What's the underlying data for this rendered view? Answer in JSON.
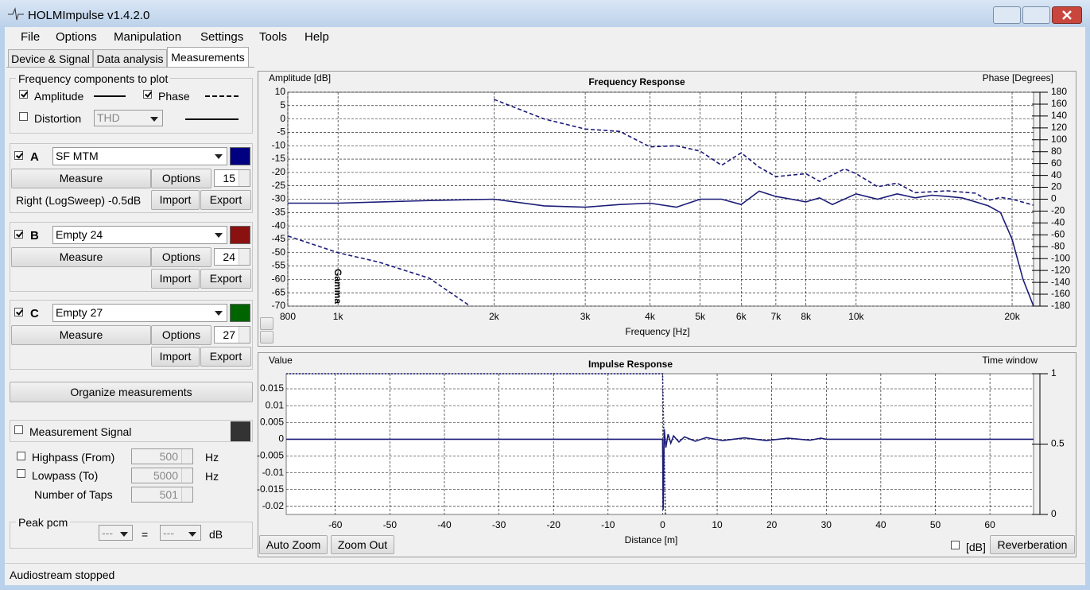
{
  "window": {
    "title": "HOLMImpulse  v1.4.2.0"
  },
  "menu": [
    "File",
    "Options",
    "Manipulation",
    "Settings",
    "Tools",
    "Help"
  ],
  "tabs": [
    "Device & Signal",
    "Data analysis",
    "Measurements"
  ],
  "components": {
    "title": "Frequency components to plot",
    "amplitude": "Amplitude",
    "phase": "Phase",
    "distortion": "Distortion",
    "distortion_type": "THD"
  },
  "measurements": [
    {
      "letter": "A",
      "name": "SF MTM",
      "color": "#000080",
      "measure": "Measure",
      "options": "Options",
      "count": 15,
      "info": "Right (LogSweep) -0.5dB",
      "import": "Import",
      "export": "Export"
    },
    {
      "letter": "B",
      "name": "Empty 24",
      "color": "#8b1010",
      "measure": "Measure",
      "options": "Options",
      "count": 24,
      "import": "Import",
      "export": "Export"
    },
    {
      "letter": "C",
      "name": "Empty 27",
      "color": "#006400",
      "measure": "Measure",
      "options": "Options",
      "count": 27,
      "import": "Import",
      "export": "Export"
    }
  ],
  "organize": "Organize measurements",
  "signal": {
    "title": "Measurement Signal",
    "highpass": "Highpass (From)",
    "highpass_value": 500,
    "lowpass": "Lowpass (To)",
    "lowpass_value": 5000,
    "taps": "Number of Taps",
    "taps_value": 501,
    "unit": "Hz"
  },
  "peak": {
    "title": "Peak pcm",
    "left": "---",
    "equals": "=",
    "right": "---",
    "unit": "dB"
  },
  "buttons": {
    "auto_zoom": "Auto Zoom",
    "zoom_out": "Zoom Out",
    "db": "[dB]",
    "reverberation": "Reverberation"
  },
  "status": "Audiostream stopped",
  "chart_data": [
    {
      "type": "line",
      "title": "Frequency Response",
      "xlabel": "Frequency [Hz]",
      "ylabel": "Amplitude [dB]",
      "y2label": "Phase [Degrees]",
      "annotation": "Gamma",
      "xscale": "log",
      "grid": true,
      "xlim": [
        800,
        22000
      ],
      "xticks": [
        800,
        {
          "value": 1000,
          "label": "1k"
        },
        {
          "value": 2000,
          "label": "2k"
        },
        {
          "value": 3000,
          "label": "3k"
        },
        {
          "value": 4000,
          "label": "4k"
        },
        {
          "value": 5000,
          "label": "5k"
        },
        {
          "value": 6000,
          "label": "6k"
        },
        {
          "value": 7000,
          "label": "7k"
        },
        {
          "value": 8000,
          "label": "8k"
        },
        {
          "value": 10000,
          "label": "10k"
        },
        {
          "value": 20000,
          "label": "20k"
        }
      ],
      "ylim": [
        -70,
        10
      ],
      "yticks": [
        10,
        5,
        0,
        -5,
        -10,
        -15,
        -20,
        -25,
        -30,
        -35,
        -40,
        -45,
        -50,
        -55,
        -60,
        -65,
        -70
      ],
      "y2lim": [
        -180,
        180
      ],
      "y2ticks": [
        180,
        160,
        140,
        120,
        100,
        80,
        60,
        40,
        20,
        0,
        -20,
        -40,
        -60,
        -80,
        -100,
        -120,
        -140,
        -160,
        -180
      ],
      "series": [
        {
          "name": "Amplitude",
          "color": "#1c1c78",
          "line_style": "solid",
          "x": [
            800,
            1000,
            1500,
            2000,
            2500,
            3000,
            3500,
            4000,
            4500,
            5000,
            5500,
            6000,
            6500,
            7000,
            7500,
            8000,
            8500,
            9000,
            10000,
            11000,
            12000,
            13000,
            14000,
            15000,
            16000,
            17000,
            18000,
            19000,
            20000,
            21000,
            22000
          ],
          "values": [
            -31.5,
            -31.5,
            -30.5,
            -30,
            -32.5,
            -33,
            -32,
            -31.5,
            -33,
            -30,
            -30,
            -32,
            -27,
            -29,
            -30,
            -31,
            -29.5,
            -32,
            -28,
            -30,
            -28,
            -29.5,
            -28.5,
            -29,
            -29.5,
            -31,
            -32.5,
            -35,
            -45,
            -60,
            -70
          ]
        },
        {
          "name": "Phase",
          "color": "#1c1c78",
          "line_style": "dashed",
          "axis": "y2",
          "x": [
            800,
            1000,
            1200,
            1500,
            1800,
            1850,
            2000,
            2500,
            3000,
            3500,
            4000,
            4500,
            5000,
            5500,
            6000,
            6500,
            7000,
            8000,
            8500,
            9500,
            10000,
            11000,
            12000,
            13000,
            15000,
            17000,
            18000,
            19000,
            20000,
            22000
          ],
          "values": [
            -62,
            -90,
            -106,
            -133,
            -180,
            null,
            168,
            135,
            118,
            114,
            88,
            90,
            81,
            57,
            78,
            54,
            38,
            43,
            30,
            51,
            43,
            21,
            27,
            11,
            14,
            10,
            -2,
            3,
            0,
            -10
          ]
        }
      ]
    },
    {
      "type": "line",
      "title": "Impulse Response",
      "xlabel": "Distance [m]",
      "ylabel": "Value",
      "y2label": "Time window",
      "grid": true,
      "xlim": [
        -69,
        68
      ],
      "xticks": [
        -60,
        -50,
        -40,
        -30,
        -20,
        -10,
        0,
        10,
        20,
        30,
        40,
        50,
        60
      ],
      "ylim": [
        -0.0224,
        0.0195
      ],
      "yticks": [
        0.015,
        0.01,
        0.005,
        0,
        -0.005,
        -0.01,
        -0.015,
        -0.02
      ],
      "y2lim": [
        0,
        1
      ],
      "y2ticks": [
        1,
        0.5,
        0
      ],
      "series": [
        {
          "name": "Impulse",
          "color": "#1c1c78",
          "line_style": "solid",
          "x": [
            -69,
            0,
            0.1,
            0.3,
            0.6,
            1,
            1.5,
            2,
            3,
            4,
            6,
            8,
            11,
            15,
            19,
            23,
            27,
            29,
            30,
            68
          ],
          "values": [
            0,
            0,
            -0.021,
            0.003,
            -0.0025,
            0.0015,
            -0.0012,
            0.001,
            -0.0008,
            0.0007,
            -0.0006,
            0.0005,
            -0.0004,
            0.0004,
            -0.0004,
            0.0003,
            -0.0003,
            0.0003,
            0,
            0
          ]
        },
        {
          "name": "Time window",
          "color": "#1c1c78",
          "line_style": "dotted",
          "axis": "y2",
          "x": [
            -69,
            0,
            0.5
          ],
          "values": [
            1,
            1,
            0
          ]
        }
      ]
    }
  ]
}
